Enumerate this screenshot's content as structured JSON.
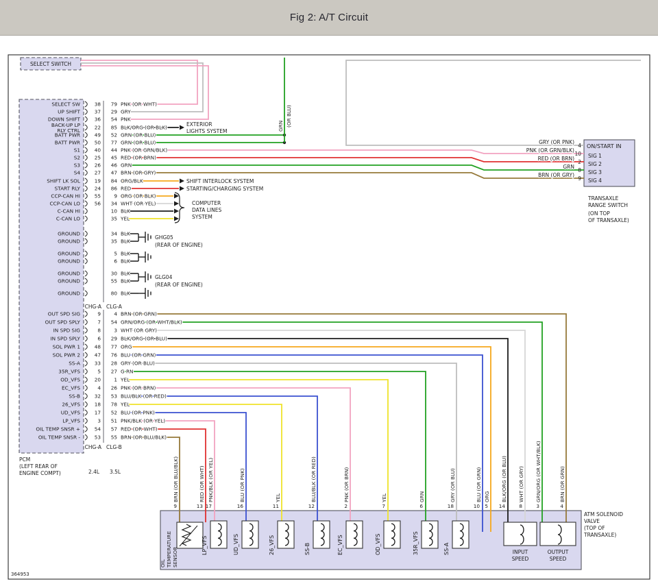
{
  "header": {
    "title": "Fig 2: A/T Circuit"
  },
  "figure_id": "364953",
  "palette": {
    "header_bg": "#cbc8c1",
    "box_fill": "#d9d8ef",
    "box_border": "#55555f",
    "ink": "#1d1d1d",
    "wire": {
      "PNK": "#f2a3c0",
      "GRY": "#bdbdbd",
      "BLK": "#1c1c1c",
      "GRN": "#21a121",
      "RED": "#e03030",
      "BRN": "#96793a",
      "ORG": "#f6a81c",
      "YEL": "#efe32a",
      "BLU": "#3a50d0",
      "WHT": "#d6d6d6"
    }
  },
  "select_switch": {
    "label": "SELECT SWITCH"
  },
  "batt_feed": {
    "color": "GRN",
    "alt": "(OR BLU)"
  },
  "pcm": {
    "caption_lines": [
      "PCM",
      "(LEFT REAR OF",
      "ENGINE COMPT)"
    ],
    "column_labels": [
      "2.4L",
      "3.5L"
    ],
    "upper_connectors": [
      "CHG-A",
      "CLG-A"
    ],
    "lower_connectors": [
      "CHG-A",
      "CLG-B"
    ]
  },
  "upper_rows": [
    {
      "label": "SELECT SW",
      "p24": "38",
      "p35": "79",
      "color": "PNK",
      "alt": "(OR WHT)",
      "wire": "PNK"
    },
    {
      "label": "UP SHIFT",
      "p24": "37",
      "p35": "29",
      "color": "GRY",
      "alt": "",
      "wire": "GRY"
    },
    {
      "label": "DOWN SHIFT",
      "p24": "36",
      "p35": "54",
      "color": "PNK",
      "alt": "",
      "wire": "PNK"
    },
    {
      "label": "BACK-UP LP",
      "label2": "RLY CTRL",
      "p24": "22",
      "p35": "85",
      "color": "BLK/ORG",
      "alt": "(OR BLK)",
      "wire": "BLK"
    },
    {
      "label": "BATT PWR",
      "p24": "49",
      "p35": "52",
      "color": "GRN",
      "alt": "(OR BLU)",
      "wire": "GRN"
    },
    {
      "label": "BATT PWR",
      "p24": "50",
      "p35": "77",
      "color": "GRN",
      "alt": "(OR BLU)",
      "wire": "GRN"
    },
    {
      "label": "S1",
      "p24": "40",
      "p35": "44",
      "color": "PNK",
      "alt": "(OR GRN/BLK)",
      "wire": "PNK"
    },
    {
      "label": "S2",
      "p24": "25",
      "p35": "45",
      "color": "RED",
      "alt": "(OR BRN)",
      "wire": "RED"
    },
    {
      "label": "S3",
      "p24": "26",
      "p35": "46",
      "color": "GRN",
      "alt": "",
      "wire": "GRN"
    },
    {
      "label": "S4",
      "p24": "27",
      "p35": "47",
      "color": "BRN",
      "alt": "(OR GRY)",
      "wire": "BRN"
    },
    {
      "label": "SHIFT LK SOL",
      "p24": "19",
      "p35": "84",
      "color": "ORG/BLK",
      "alt": "",
      "wire": "ORG"
    },
    {
      "label": "START RLY",
      "p24": "24",
      "p35": "86",
      "color": "RED",
      "alt": "",
      "wire": "RED"
    },
    {
      "label": "CCP-CAN HI",
      "p24": "55",
      "p35": "9",
      "color": "ORG",
      "alt": "(OR BLK)",
      "wire": "ORG"
    },
    {
      "label": "CCP-CAN LO",
      "p24": "56",
      "p35": "34",
      "color": "WHT",
      "alt": "(OR YEL)",
      "wire": "WHT"
    },
    {
      "label": "C-CAN HI",
      "p24": "",
      "p35": "10",
      "color": "BLK",
      "alt": "",
      "wire": "BLK"
    },
    {
      "label": "C-CAN LO",
      "p24": "",
      "p35": "35",
      "color": "YEL",
      "alt": "",
      "wire": "YEL"
    },
    {
      "label": "GROUND",
      "p24": "",
      "p35": "34",
      "color": "BLK",
      "alt": "",
      "wire": "BLK"
    },
    {
      "label": "GROUND",
      "p24": "",
      "p35": "35",
      "color": "BLK",
      "alt": "",
      "wire": "BLK"
    },
    {
      "label": "GROUND",
      "p24": "",
      "p35": "5",
      "color": "BLK",
      "alt": "",
      "wire": "BLK"
    },
    {
      "label": "GROUND",
      "p24": "",
      "p35": "6",
      "color": "BLK",
      "alt": "",
      "wire": "BLK"
    },
    {
      "label": "GROUND",
      "p24": "",
      "p35": "30",
      "color": "BLK",
      "alt": "",
      "wire": "BLK"
    },
    {
      "label": "GROUND",
      "p24": "",
      "p35": "55",
      "color": "BLK",
      "alt": "",
      "wire": "BLK"
    },
    {
      "label": "GROUND",
      "p24": "",
      "p35": "80",
      "color": "BLK",
      "alt": "",
      "wire": "BLK"
    }
  ],
  "lower_rows": [
    {
      "label": "OUT SPD SIG",
      "p24": "9",
      "p35": "4",
      "color": "BRN",
      "alt": "(OR GRN)",
      "wire": "BRN",
      "bpin": "4",
      "bcolor": "BRN (OR GRN)"
    },
    {
      "label": "OUT SPD SPLY",
      "p24": "7",
      "p35": "54",
      "color": "GRN/ORG",
      "alt": "(OR WHT/BLK)",
      "wire": "GRN",
      "bpin": "3",
      "bcolor": "GRN/ORG (OR WHT/BLK)"
    },
    {
      "label": "IN SPD SIG",
      "p24": "8",
      "p35": "3",
      "color": "WHT",
      "alt": "(OR GRY)",
      "wire": "WHT",
      "bpin": "8",
      "bcolor": "WHT (OR GRY)"
    },
    {
      "label": "IN SPD SPLY",
      "p24": "6",
      "p35": "29",
      "color": "BLK/ORG",
      "alt": "(OR BLU)",
      "wire": "BLK",
      "bpin": "14",
      "bcolor": "BLK/ORG (OR BLU)"
    },
    {
      "label": "SOL PWR 1",
      "p24": "48",
      "p35": "77",
      "color": "ORG",
      "alt": "",
      "wire": "ORG",
      "bpin": "5",
      "bcolor": "ORG"
    },
    {
      "label": "SOL PWR 2",
      "p24": "47",
      "p35": "76",
      "color": "BLU",
      "alt": "(OR GRN)",
      "wire": "BLU",
      "bpin": "10",
      "bcolor": "BLU (OR GRN)"
    },
    {
      "label": "SS-A",
      "p24": "33",
      "p35": "28",
      "color": "GRY",
      "alt": "(OR BLU)",
      "wire": "GRY",
      "bpin": "18",
      "bcolor": "GRY (OR BLU)"
    },
    {
      "label": "35R_VFS",
      "p24": "5",
      "p35": "27",
      "color": "G RN",
      "alt": "",
      "wire": "GRN",
      "bpin": "6",
      "bcolor": "GRN"
    },
    {
      "label": "OD_VFS",
      "p24": "20",
      "p35": "1",
      "color": "YEL",
      "alt": "",
      "wire": "YEL",
      "bpin": "7",
      "bcolor": "YEL"
    },
    {
      "label": "EC_VFS",
      "p24": "4",
      "p35": "26",
      "color": "PNK",
      "alt": "(OR BRN)",
      "wire": "PNK",
      "bpin": "2",
      "bcolor": "PNK (OR BRN)"
    },
    {
      "label": "SS-B",
      "p24": "32",
      "p35": "53",
      "color": "BLU/BLK",
      "alt": "(OR RED)",
      "wire": "BLU",
      "bpin": "12",
      "bcolor": "BLU/BLK (OR RED)"
    },
    {
      "label": "26_VFS",
      "p24": "18",
      "p35": "78",
      "color": "YEL",
      "alt": "",
      "wire": "YEL",
      "bpin": "11",
      "bcolor": "YEL"
    },
    {
      "label": "UD_VFS",
      "p24": "17",
      "p35": "52",
      "color": "BLU",
      "alt": "(OR PNK)",
      "wire": "BLU",
      "bpin": "16",
      "bcolor": "BLU (OR PNK)"
    },
    {
      "label": "LP_VFS",
      "p24": "3",
      "p35": "51",
      "color": "PNK/BLK",
      "alt": "(OR YEL)",
      "wire": "PNK",
      "bpin": "17",
      "bcolor": "PNK/BLK (OR YEL)"
    },
    {
      "label": "OIL TEMP SNSR +",
      "p24": "54",
      "p35": "57",
      "color": "RED",
      "alt": "(OR WHT)",
      "wire": "RED",
      "bpin": "13",
      "bcolor": "RED (OR WHT)"
    },
    {
      "label": "OIL TEMP SNSR -",
      "p24": "53",
      "p35": "55",
      "color": "BRN",
      "alt": "(OR BLU/BLK)",
      "wire": "BRN",
      "bpin": "9",
      "bcolor": "BRN (OR BLU/BLK)"
    }
  ],
  "annotations": {
    "exterior_lines": [
      "EXTERIOR",
      "LIGHTS SYSTEM"
    ],
    "shift_interlock": "SHIFT INTERLOCK SYSTEM",
    "starting_charging": "STARTING/CHARGING SYSTEM",
    "computer_lines": [
      "COMPUTER",
      "DATA LINES",
      "SYSTEM"
    ],
    "ground_a": {
      "name": "GHG05",
      "loc": "(REAR OF ENGINE)"
    },
    "ground_c": {
      "name": "GLG04",
      "loc": "(REAR OF ENGINE)"
    }
  },
  "range_switch": {
    "title": "ON/START IN",
    "signals": [
      "SIG 1",
      "SIG 2",
      "SIG 3",
      "SIG 4"
    ],
    "pins": [
      {
        "num": "4",
        "label": "GRY (OR PNK)",
        "wire": "GRY"
      },
      {
        "num": "10",
        "label": "PNK (OR GRN/BLK)",
        "wire": "PNK"
      },
      {
        "num": "2",
        "label": "RED (OR BRN)",
        "wire": "RED"
      },
      {
        "num": "8",
        "label": "GRN",
        "wire": "GRN"
      },
      {
        "num": "9",
        "label": "BRN (OR GRY)",
        "wire": "BRN"
      }
    ],
    "caption_lines": [
      "TRANSAXLE",
      "RANGE SWITCH",
      "(ON TOP",
      "OF TRANSAXLE)"
    ]
  },
  "solenoid_box": {
    "caption_lines": [
      "ATM SOLENOID",
      "VALVE",
      "(TOP OF",
      "TRANSAXLE)"
    ],
    "oil_sensor_lines": [
      "OIL",
      "TEMPERATURE",
      "SENSOR"
    ],
    "solenoids": [
      "LP_VFS",
      "UD_VFS",
      "26_VFS",
      "SS-B",
      "EC_VFS",
      "OD_VFS",
      "35R_VFS",
      "SS-A"
    ],
    "speed_sensors": [
      [
        "INPUT",
        "SPEED"
      ],
      [
        "OUTPUT",
        "SPEED"
      ]
    ]
  }
}
